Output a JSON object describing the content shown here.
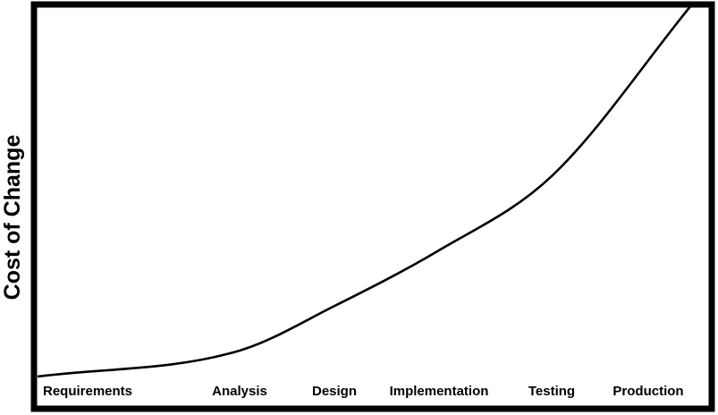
{
  "chart_data": {
    "type": "line",
    "title": "",
    "xlabel": "",
    "ylabel": "Cost of Change",
    "categories": [
      "Requirements",
      "Analysis",
      "Design",
      "Implementation",
      "Testing",
      "Production"
    ],
    "series": [
      {
        "values": [
          0.0,
          0.07,
          0.19,
          0.34,
          0.54,
          1.0
        ]
      }
    ],
    "ylim": [
      0,
      1
    ],
    "grid": false,
    "legend": "none",
    "colors": {
      "line": "#000000",
      "frame": "#000000",
      "background": "#ffffff"
    }
  }
}
